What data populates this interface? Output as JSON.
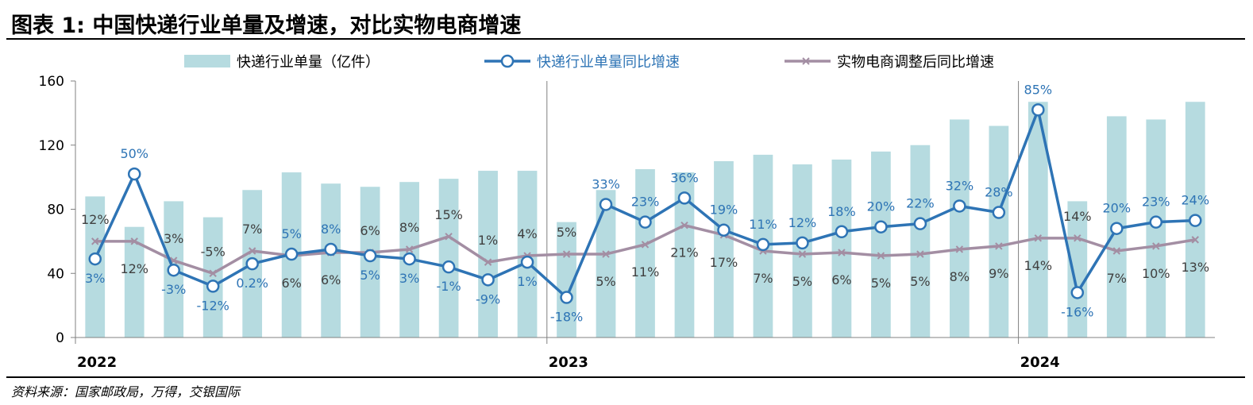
{
  "title": "图表 1: 中国快递行业单量及增速，对比实物电商增速",
  "source": "资料来源：国家邮政局，万得，交银国际",
  "colors": {
    "bar": "#b6dbe0",
    "line1": "#2e74b5",
    "line2": "#a38ea3",
    "axis": "#808080"
  },
  "chart_data": {
    "type": "bar",
    "y_axis": {
      "min": 0,
      "max": 160,
      "ticks": [
        0,
        40,
        80,
        120,
        160
      ]
    },
    "year_labels": [
      {
        "label": "2022",
        "index": 0
      },
      {
        "label": "2023",
        "index": 12
      },
      {
        "label": "2024",
        "index": 24
      }
    ],
    "legend": {
      "bar": "快递行业单量（亿件）",
      "line1": "快递行业单量同比增速",
      "line2": "实物电商调整后同比增速"
    },
    "bars": [
      88,
      69,
      85,
      75,
      92,
      103,
      96,
      94,
      97,
      99,
      104,
      104,
      72,
      92,
      105,
      103,
      110,
      114,
      108,
      111,
      116,
      120,
      136,
      132,
      147,
      85,
      138,
      136,
      147
    ],
    "line1": [
      49,
      102,
      42,
      32,
      46,
      52,
      55,
      51,
      49,
      44,
      36,
      47,
      25,
      83,
      72,
      87,
      67,
      58,
      59,
      66,
      69,
      71,
      82,
      78,
      142,
      28,
      68,
      72,
      73
    ],
    "line1_labels": [
      "3%",
      "50%",
      "-3%",
      "-12%",
      "0.2%",
      "5%",
      "8%",
      "5%",
      "3%",
      "-1%",
      "-9%",
      "1%",
      "-18%",
      "33%",
      "23%",
      "36%",
      "19%",
      "11%",
      "12%",
      "18%",
      "20%",
      "22%",
      "32%",
      "28%",
      "85%",
      "-16%",
      "20%",
      "23%",
      "24%"
    ],
    "line2": [
      60,
      60,
      48,
      40,
      54,
      51,
      53,
      53,
      55,
      63,
      47,
      51,
      52,
      52,
      58,
      70,
      64,
      54,
      52,
      53,
      51,
      52,
      55,
      57,
      62,
      62,
      54,
      57,
      61
    ],
    "line2_labels": [
      "12%",
      "12%",
      "3%",
      "-5%",
      "7%",
      "6%",
      "6%",
      "6%",
      "8%",
      "15%",
      "1%",
      "4%",
      "5%",
      "5%",
      "11%",
      "21%",
      "17%",
      "7%",
      "5%",
      "6%",
      "5%",
      "5%",
      "8%",
      "9%",
      "14%",
      "14%",
      "7%",
      "10%",
      "13%"
    ]
  }
}
